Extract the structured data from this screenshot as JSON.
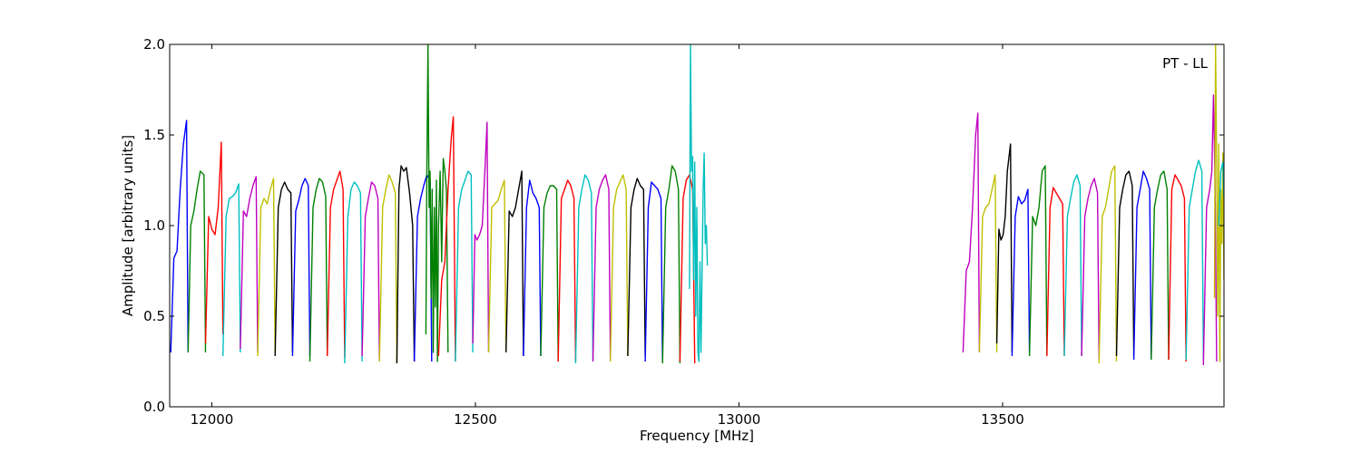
{
  "chart_data": {
    "type": "line",
    "title": "",
    "annotation": "PT - LL",
    "xlabel": "Frequency [MHz]",
    "ylabel": "Amplitude [arbitrary units]",
    "xlim": [
      11920,
      13920
    ],
    "ylim": [
      0.0,
      2.0
    ],
    "xticks": [
      12000,
      12500,
      13000,
      13500
    ],
    "xtick_labels": [
      "12000",
      "12500",
      "13000",
      "13500"
    ],
    "yticks": [
      0.0,
      0.5,
      1.0,
      1.5,
      2.0
    ],
    "ytick_labels": [
      "0.0",
      "0.5",
      "1.0",
      "1.5",
      "2.0"
    ],
    "grid": false,
    "legend": "none",
    "palette": [
      "#0000ff",
      "#008000",
      "#ff0000",
      "#00bfbf",
      "#bf00bf",
      "#bfbf00",
      "#000000"
    ],
    "series": [
      {
        "color": "#0000ff",
        "x": [
          11922,
          11928,
          11934,
          11940,
          11946,
          11952,
          11955
        ],
        "y": [
          0.3,
          0.82,
          0.86,
          1.2,
          1.45,
          1.58,
          0.3
        ]
      },
      {
        "color": "#008000",
        "x": [
          11955,
          11960,
          11966,
          11972,
          11978,
          11985,
          11988
        ],
        "y": [
          0.3,
          1.0,
          1.08,
          1.2,
          1.3,
          1.28,
          0.3
        ]
      },
      {
        "color": "#ff0000",
        "x": [
          11988,
          11994,
          12000,
          12006,
          12012,
          12018,
          12021
        ],
        "y": [
          0.35,
          1.05,
          0.98,
          0.95,
          1.1,
          1.46,
          0.4
        ]
      },
      {
        "color": "#00bfbf",
        "x": [
          12021,
          12027,
          12033,
          12039,
          12045,
          12051,
          12054
        ],
        "y": [
          0.28,
          1.05,
          1.15,
          1.16,
          1.18,
          1.23,
          0.3
        ]
      },
      {
        "color": "#bf00bf",
        "x": [
          12054,
          12060,
          12066,
          12072,
          12078,
          12084,
          12087
        ],
        "y": [
          0.32,
          1.08,
          1.05,
          1.15,
          1.22,
          1.27,
          0.3
        ]
      },
      {
        "color": "#bfbf00",
        "x": [
          12087,
          12093,
          12099,
          12105,
          12111,
          12117,
          12120
        ],
        "y": [
          0.28,
          1.1,
          1.15,
          1.12,
          1.2,
          1.26,
          0.3
        ]
      },
      {
        "color": "#000000",
        "x": [
          12120,
          12126,
          12132,
          12138,
          12144,
          12150,
          12153
        ],
        "y": [
          0.28,
          1.1,
          1.2,
          1.24,
          1.2,
          1.18,
          0.3
        ]
      },
      {
        "color": "#0000ff",
        "x": [
          12153,
          12159,
          12165,
          12171,
          12177,
          12183,
          12186
        ],
        "y": [
          0.28,
          1.08,
          1.14,
          1.22,
          1.26,
          1.22,
          0.28
        ]
      },
      {
        "color": "#008000",
        "x": [
          12186,
          12192,
          12198,
          12204,
          12210,
          12216,
          12219
        ],
        "y": [
          0.25,
          1.1,
          1.2,
          1.26,
          1.24,
          1.16,
          0.28
        ]
      },
      {
        "color": "#ff0000",
        "x": [
          12219,
          12225,
          12231,
          12237,
          12243,
          12249,
          12252
        ],
        "y": [
          0.28,
          1.1,
          1.2,
          1.25,
          1.3,
          1.2,
          0.27
        ]
      },
      {
        "color": "#00bfbf",
        "x": [
          12252,
          12258,
          12264,
          12270,
          12276,
          12282,
          12285
        ],
        "y": [
          0.24,
          1.05,
          1.2,
          1.24,
          1.22,
          1.18,
          0.25
        ]
      },
      {
        "color": "#bf00bf",
        "x": [
          12285,
          12291,
          12297,
          12303,
          12309,
          12315,
          12318
        ],
        "y": [
          0.28,
          1.05,
          1.15,
          1.24,
          1.22,
          1.15,
          0.25
        ]
      },
      {
        "color": "#bfbf00",
        "x": [
          12318,
          12324,
          12330,
          12336,
          12342,
          12348,
          12351
        ],
        "y": [
          0.25,
          1.1,
          1.2,
          1.28,
          1.24,
          1.18,
          0.24
        ]
      },
      {
        "color": "#000000",
        "x": [
          12351,
          12355,
          12359,
          12364,
          12369,
          12375,
          12381,
          12384
        ],
        "y": [
          0.24,
          1.2,
          1.33,
          1.3,
          1.32,
          1.18,
          1.0,
          0.25
        ]
      },
      {
        "color": "#0000ff",
        "x": [
          12384,
          12390,
          12396,
          12402,
          12408,
          12414,
          12417
        ],
        "y": [
          0.25,
          1.05,
          1.15,
          1.22,
          1.28,
          1.25,
          0.25
        ]
      },
      {
        "color": "#008000",
        "x": [
          12406,
          12408,
          12410,
          12412,
          12414,
          12416,
          12418,
          12420,
          12422,
          12424,
          12426,
          12428,
          12430,
          12433,
          12436,
          12439,
          12442,
          12445,
          12448
        ],
        "y": [
          0.4,
          1.33,
          2.0,
          1.1,
          1.3,
          0.6,
          1.2,
          0.3,
          1.1,
          0.55,
          1.25,
          0.25,
          1.0,
          1.3,
          0.8,
          1.37,
          1.3,
          1.2,
          0.3
        ]
      },
      {
        "color": "#ff0000",
        "x": [
          12430,
          12436,
          12442,
          12448,
          12454,
          12458,
          12462
        ],
        "y": [
          0.28,
          0.7,
          0.8,
          1.2,
          1.48,
          1.6,
          0.25
        ]
      },
      {
        "color": "#00bfbf",
        "x": [
          12462,
          12468,
          12474,
          12480,
          12486,
          12492,
          12495
        ],
        "y": [
          0.25,
          1.1,
          1.2,
          1.25,
          1.3,
          1.28,
          0.3
        ]
      },
      {
        "color": "#bf00bf",
        "x": [
          12495,
          12499,
          12503,
          12508,
          12513,
          12518,
          12522,
          12525
        ],
        "y": [
          0.35,
          0.95,
          0.92,
          0.95,
          1.0,
          1.3,
          1.57,
          0.3
        ]
      },
      {
        "color": "#bfbf00",
        "x": [
          12525,
          12531,
          12537,
          12543,
          12549,
          12555,
          12558
        ],
        "y": [
          0.3,
          1.1,
          1.12,
          1.14,
          1.2,
          1.25,
          0.3
        ]
      },
      {
        "color": "#000000",
        "x": [
          12558,
          12564,
          12570,
          12576,
          12582,
          12588,
          12591
        ],
        "y": [
          0.3,
          1.08,
          1.05,
          1.1,
          1.2,
          1.3,
          0.28
        ]
      },
      {
        "color": "#0000ff",
        "x": [
          12591,
          12597,
          12603,
          12609,
          12615,
          12621,
          12624
        ],
        "y": [
          0.28,
          1.1,
          1.25,
          1.18,
          1.15,
          1.1,
          0.28
        ]
      },
      {
        "color": "#008000",
        "x": [
          12624,
          12630,
          12636,
          12642,
          12648,
          12654,
          12657
        ],
        "y": [
          0.28,
          1.1,
          1.18,
          1.22,
          1.22,
          1.2,
          0.25
        ]
      },
      {
        "color": "#ff0000",
        "x": [
          12657,
          12663,
          12669,
          12675,
          12681,
          12687,
          12690
        ],
        "y": [
          0.25,
          1.15,
          1.2,
          1.25,
          1.22,
          1.15,
          0.25
        ]
      },
      {
        "color": "#00bfbf",
        "x": [
          12690,
          12696,
          12702,
          12708,
          12714,
          12720,
          12723
        ],
        "y": [
          0.24,
          1.1,
          1.2,
          1.28,
          1.25,
          1.18,
          0.25
        ]
      },
      {
        "color": "#bf00bf",
        "x": [
          12723,
          12729,
          12735,
          12741,
          12747,
          12753,
          12756
        ],
        "y": [
          0.25,
          1.1,
          1.2,
          1.25,
          1.28,
          1.2,
          0.25
        ]
      },
      {
        "color": "#bfbf00",
        "x": [
          12756,
          12762,
          12768,
          12774,
          12780,
          12786,
          12789
        ],
        "y": [
          0.25,
          1.1,
          1.2,
          1.24,
          1.28,
          1.2,
          0.28
        ]
      },
      {
        "color": "#000000",
        "x": [
          12789,
          12795,
          12801,
          12807,
          12813,
          12819,
          12822
        ],
        "y": [
          0.28,
          1.1,
          1.2,
          1.26,
          1.22,
          1.2,
          0.28
        ]
      },
      {
        "color": "#0000ff",
        "x": [
          12822,
          12828,
          12834,
          12840,
          12846,
          12852,
          12855
        ],
        "y": [
          0.25,
          1.1,
          1.24,
          1.22,
          1.2,
          1.15,
          0.25
        ]
      },
      {
        "color": "#008000",
        "x": [
          12855,
          12861,
          12867,
          12873,
          12879,
          12885,
          12888
        ],
        "y": [
          0.24,
          1.1,
          1.2,
          1.33,
          1.3,
          1.2,
          0.24
        ]
      },
      {
        "color": "#ff0000",
        "x": [
          12888,
          12894,
          12900,
          12906,
          12912,
          12916
        ],
        "y": [
          0.25,
          1.15,
          1.25,
          1.28,
          1.2,
          0.24
        ]
      },
      {
        "color": "#00bfbf",
        "x": [
          12906,
          12908,
          12910,
          12912,
          12914,
          12916,
          12918,
          12920,
          12922,
          12924,
          12926,
          12928,
          12930,
          12932,
          12934,
          12936,
          12938,
          12940
        ],
        "y": [
          0.65,
          2.0,
          1.3,
          1.38,
          0.7,
          1.35,
          0.5,
          1.1,
          0.3,
          0.25,
          0.8,
          0.3,
          0.75,
          1.2,
          1.4,
          0.9,
          1.0,
          0.78
        ]
      },
      {
        "color": "#bf00bf",
        "x": [
          13425,
          13431,
          13437,
          13443,
          13449,
          13453,
          13456
        ],
        "y": [
          0.3,
          0.75,
          0.8,
          1.1,
          1.5,
          1.62,
          0.3
        ]
      },
      {
        "color": "#bfbf00",
        "x": [
          13456,
          13462,
          13468,
          13474,
          13480,
          13486,
          13489
        ],
        "y": [
          0.3,
          1.05,
          1.1,
          1.12,
          1.2,
          1.28,
          0.3
        ]
      },
      {
        "color": "#000000",
        "x": [
          13489,
          13493,
          13497,
          13501,
          13505,
          13509,
          13515,
          13518
        ],
        "y": [
          0.35,
          0.98,
          0.92,
          0.95,
          1.05,
          1.3,
          1.45,
          0.3
        ]
      },
      {
        "color": "#0000ff",
        "x": [
          13518,
          13524,
          13530,
          13536,
          13542,
          13548,
          13551
        ],
        "y": [
          0.28,
          1.05,
          1.16,
          1.12,
          1.14,
          1.2,
          0.3
        ]
      },
      {
        "color": "#008000",
        "x": [
          13551,
          13557,
          13563,
          13569,
          13575,
          13581,
          13584
        ],
        "y": [
          0.28,
          1.05,
          1.0,
          1.1,
          1.3,
          1.33,
          0.28
        ]
      },
      {
        "color": "#ff0000",
        "x": [
          13584,
          13590,
          13596,
          13602,
          13608,
          13614,
          13617
        ],
        "y": [
          0.28,
          1.1,
          1.21,
          1.18,
          1.15,
          1.12,
          0.28
        ]
      },
      {
        "color": "#00bfbf",
        "x": [
          13617,
          13623,
          13629,
          13635,
          13641,
          13647,
          13650
        ],
        "y": [
          0.28,
          1.05,
          1.15,
          1.24,
          1.28,
          1.22,
          0.28
        ]
      },
      {
        "color": "#bf00bf",
        "x": [
          13650,
          13656,
          13662,
          13668,
          13674,
          13680,
          13683
        ],
        "y": [
          0.28,
          1.05,
          1.15,
          1.22,
          1.26,
          1.18,
          0.26
        ]
      },
      {
        "color": "#bfbf00",
        "x": [
          13683,
          13689,
          13695,
          13701,
          13707,
          13713,
          13716
        ],
        "y": [
          0.24,
          1.05,
          1.1,
          1.2,
          1.3,
          1.33,
          0.25
        ]
      },
      {
        "color": "#000000",
        "x": [
          13716,
          13722,
          13728,
          13734,
          13740,
          13746,
          13749
        ],
        "y": [
          0.28,
          1.1,
          1.2,
          1.28,
          1.3,
          1.22,
          0.28
        ]
      },
      {
        "color": "#0000ff",
        "x": [
          13749,
          13755,
          13761,
          13767,
          13773,
          13779,
          13782
        ],
        "y": [
          0.26,
          1.1,
          1.2,
          1.3,
          1.26,
          1.2,
          0.26
        ]
      },
      {
        "color": "#008000",
        "x": [
          13782,
          13788,
          13794,
          13800,
          13806,
          13812,
          13815
        ],
        "y": [
          0.26,
          1.1,
          1.2,
          1.28,
          1.3,
          1.2,
          0.26
        ]
      },
      {
        "color": "#ff0000",
        "x": [
          13815,
          13821,
          13827,
          13833,
          13839,
          13845,
          13848
        ],
        "y": [
          0.26,
          1.2,
          1.28,
          1.25,
          1.22,
          1.15,
          0.25
        ]
      },
      {
        "color": "#00bfbf",
        "x": [
          13848,
          13854,
          13860,
          13866,
          13872,
          13878,
          13881
        ],
        "y": [
          0.26,
          1.1,
          1.2,
          1.3,
          1.36,
          1.3,
          0.26
        ]
      },
      {
        "color": "#bf00bf",
        "x": [
          13881,
          13887,
          13893,
          13897,
          13900,
          13903,
          13906
        ],
        "y": [
          0.23,
          1.1,
          1.2,
          1.3,
          1.72,
          1.25,
          0.25
        ]
      },
      {
        "color": "#bfbf00",
        "x": [
          13902,
          13904,
          13906,
          13908,
          13910,
          13912,
          13914,
          13916,
          13918,
          13920
        ],
        "y": [
          0.6,
          2.0,
          1.37,
          0.5,
          1.45,
          0.25,
          1.2,
          0.9,
          1.4,
          0.7
        ]
      },
      {
        "color": "#00bfbf",
        "x": [
          13910,
          13914,
          13918,
          13920
        ],
        "y": [
          1.0,
          1.3,
          1.35,
          1.15
        ]
      }
    ]
  }
}
